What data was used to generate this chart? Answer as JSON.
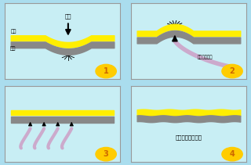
{
  "bg_color": "#aaddee",
  "panel_bg": "#c8eef4",
  "border_color": "#999999",
  "yellow_color": "#ffee00",
  "gray_color": "#888888",
  "lavender_color": "#ccaacc",
  "labels": {
    "p1_top": "凹陷",
    "p1_left1": "漆面",
    "p1_left2": "钓板",
    "p2_right": "挥压工具前端",
    "p4_text": "直接凹陷融入车漆",
    "num1": "1",
    "num2": "2",
    "num3": "3",
    "num4": "4"
  },
  "circle_color": "#ffcc00",
  "num_color": "#cc6600"
}
